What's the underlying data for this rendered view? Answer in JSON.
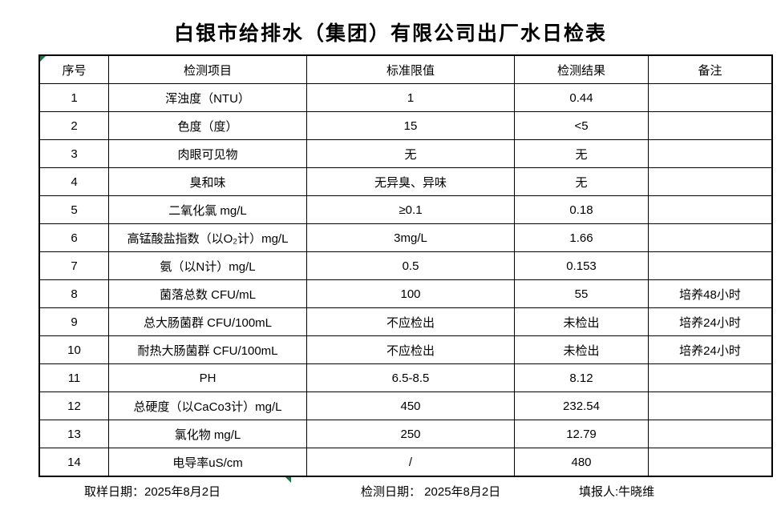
{
  "title": "白银市给排水（集团）有限公司出厂水日检表",
  "table": {
    "headers": [
      "序号",
      "检测项目",
      "标准限值",
      "检测结果",
      "备注"
    ],
    "rows": [
      {
        "no": "1",
        "item": "浑浊度（NTU）",
        "limit": "1",
        "result": "0.44",
        "remark": ""
      },
      {
        "no": "2",
        "item": "色度（度）",
        "limit": "15",
        "result": "<5",
        "remark": ""
      },
      {
        "no": "3",
        "item": "肉眼可见物",
        "limit": "无",
        "result": "无",
        "remark": ""
      },
      {
        "no": "4",
        "item": "臭和味",
        "limit": "无异臭、异味",
        "result": "无",
        "remark": ""
      },
      {
        "no": "5",
        "item": "二氧化氯 mg/L",
        "limit": "≥0.1",
        "result": "0.18",
        "remark": ""
      },
      {
        "no": "6",
        "item": "高锰酸盐指数（以O₂计）mg/L",
        "limit": "3mg/L",
        "result": "1.66",
        "remark": ""
      },
      {
        "no": "7",
        "item": "氨（以N计）mg/L",
        "limit": "0.5",
        "result": "0.153",
        "remark": ""
      },
      {
        "no": "8",
        "item": "菌落总数 CFU/mL",
        "limit": "100",
        "result": "55",
        "remark": "培养48小时"
      },
      {
        "no": "9",
        "item": "总大肠菌群 CFU/100mL",
        "limit": "不应检出",
        "result": "未检出",
        "remark": "培养24小时"
      },
      {
        "no": "10",
        "item": "耐热大肠菌群 CFU/100mL",
        "limit": "不应检出",
        "result": "未检出",
        "remark": "培养24小时"
      },
      {
        "no": "11",
        "item": "PH",
        "limit": "6.5-8.5",
        "result": "8.12",
        "remark": ""
      },
      {
        "no": "12",
        "item": "总硬度（以CaCo3计）mg/L",
        "limit": "450",
        "result": "232.54",
        "remark": ""
      },
      {
        "no": "13",
        "item": "氯化物 mg/L",
        "limit": "250",
        "result": "12.79",
        "remark": ""
      },
      {
        "no": "14",
        "item": "电导率uS/cm",
        "limit": "/",
        "result": "480",
        "remark": ""
      }
    ]
  },
  "footer": {
    "sampling_date": "取样日期：2025年8月2日",
    "test_date": "检测日期： 2025年8月2日",
    "reporter": "填报人:牛晓维"
  },
  "colors": {
    "marker_green": "#217346",
    "border": "#000000",
    "text": "#000000",
    "background": "#ffffff"
  }
}
